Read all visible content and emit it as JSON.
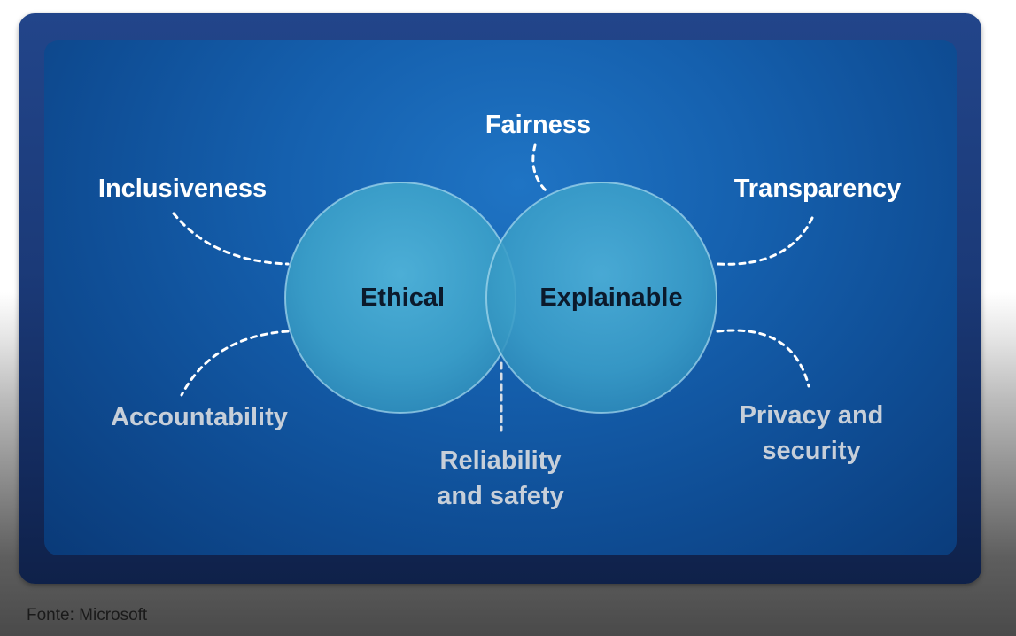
{
  "diagram": {
    "circles": {
      "left": "Ethical",
      "right": "Explainable"
    },
    "principles": {
      "inclusiveness": "Inclusiveness",
      "fairness": "Fairness",
      "transparency": "Transparency",
      "accountability": "Accountability",
      "reliability_line1": "Reliability",
      "reliability_line2": "and safety",
      "privacy_line1": "Privacy and",
      "privacy_line2": "security"
    }
  },
  "source": "Fonte: Microsoft",
  "colors": {
    "frame": "#1b3a78",
    "panel": "#1560ae",
    "circle_fill": "#3ea3cc",
    "label_bright": "#ffffff",
    "label_dim": "#c7cfd9",
    "circle_text": "#0b1a2c"
  }
}
